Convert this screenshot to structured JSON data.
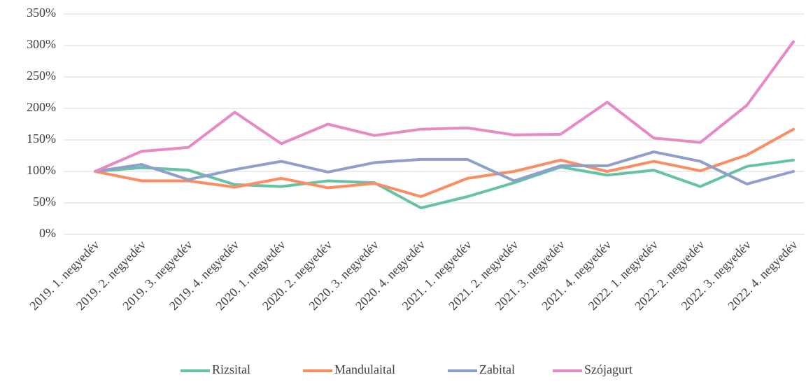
{
  "chart_data": {
    "type": "line",
    "categories": [
      "2019. 1. negyedév",
      "2019. 2. negyedév",
      "2019. 3. negyedév",
      "2019. 4. negyedév",
      "2020. 1. negyedév",
      "2020. 2. negyedév",
      "2020. 3. negyedév",
      "2020. 4. negyedév",
      "2021. 1. negyedév",
      "2021. 2. negyedév",
      "2021. 3. negyedév",
      "2021. 4. negyedév",
      "2022. 1. negyedév",
      "2022. 2. negyedév",
      "2022. 3. negyedév",
      "2022. 4. negyedév"
    ],
    "series": [
      {
        "name": "Rizsital",
        "color": "#66c2a5",
        "values": [
          100,
          106,
          102,
          79,
          76,
          85,
          82,
          42,
          60,
          82,
          107,
          94,
          102,
          76,
          108,
          118
        ]
      },
      {
        "name": "Mandulaital",
        "color": "#fc8d62",
        "values": [
          100,
          85,
          85,
          75,
          89,
          74,
          81,
          60,
          89,
          100,
          118,
          100,
          116,
          101,
          126,
          167
        ]
      },
      {
        "name": "Zabital",
        "color": "#8da0cb",
        "values": [
          100,
          111,
          87,
          103,
          116,
          99,
          114,
          119,
          119,
          85,
          109,
          109,
          131,
          116,
          80,
          100
        ]
      },
      {
        "name": "Szójagurt",
        "color": "#e78ac3",
        "values": [
          100,
          132,
          138,
          194,
          144,
          175,
          157,
          167,
          169,
          158,
          159,
          210,
          153,
          146,
          205,
          306
        ]
      }
    ],
    "ylim": [
      0,
      350
    ],
    "yticks": [
      {
        "value": 0,
        "label": "0%"
      },
      {
        "value": 50,
        "label": "50%"
      },
      {
        "value": 100,
        "label": "100%"
      },
      {
        "value": 150,
        "label": "150%"
      },
      {
        "value": 200,
        "label": "200%"
      },
      {
        "value": 250,
        "label": "250%"
      },
      {
        "value": 300,
        "label": "300%"
      },
      {
        "value": 350,
        "label": "350%"
      }
    ],
    "grid": true,
    "legend": "bottom"
  }
}
